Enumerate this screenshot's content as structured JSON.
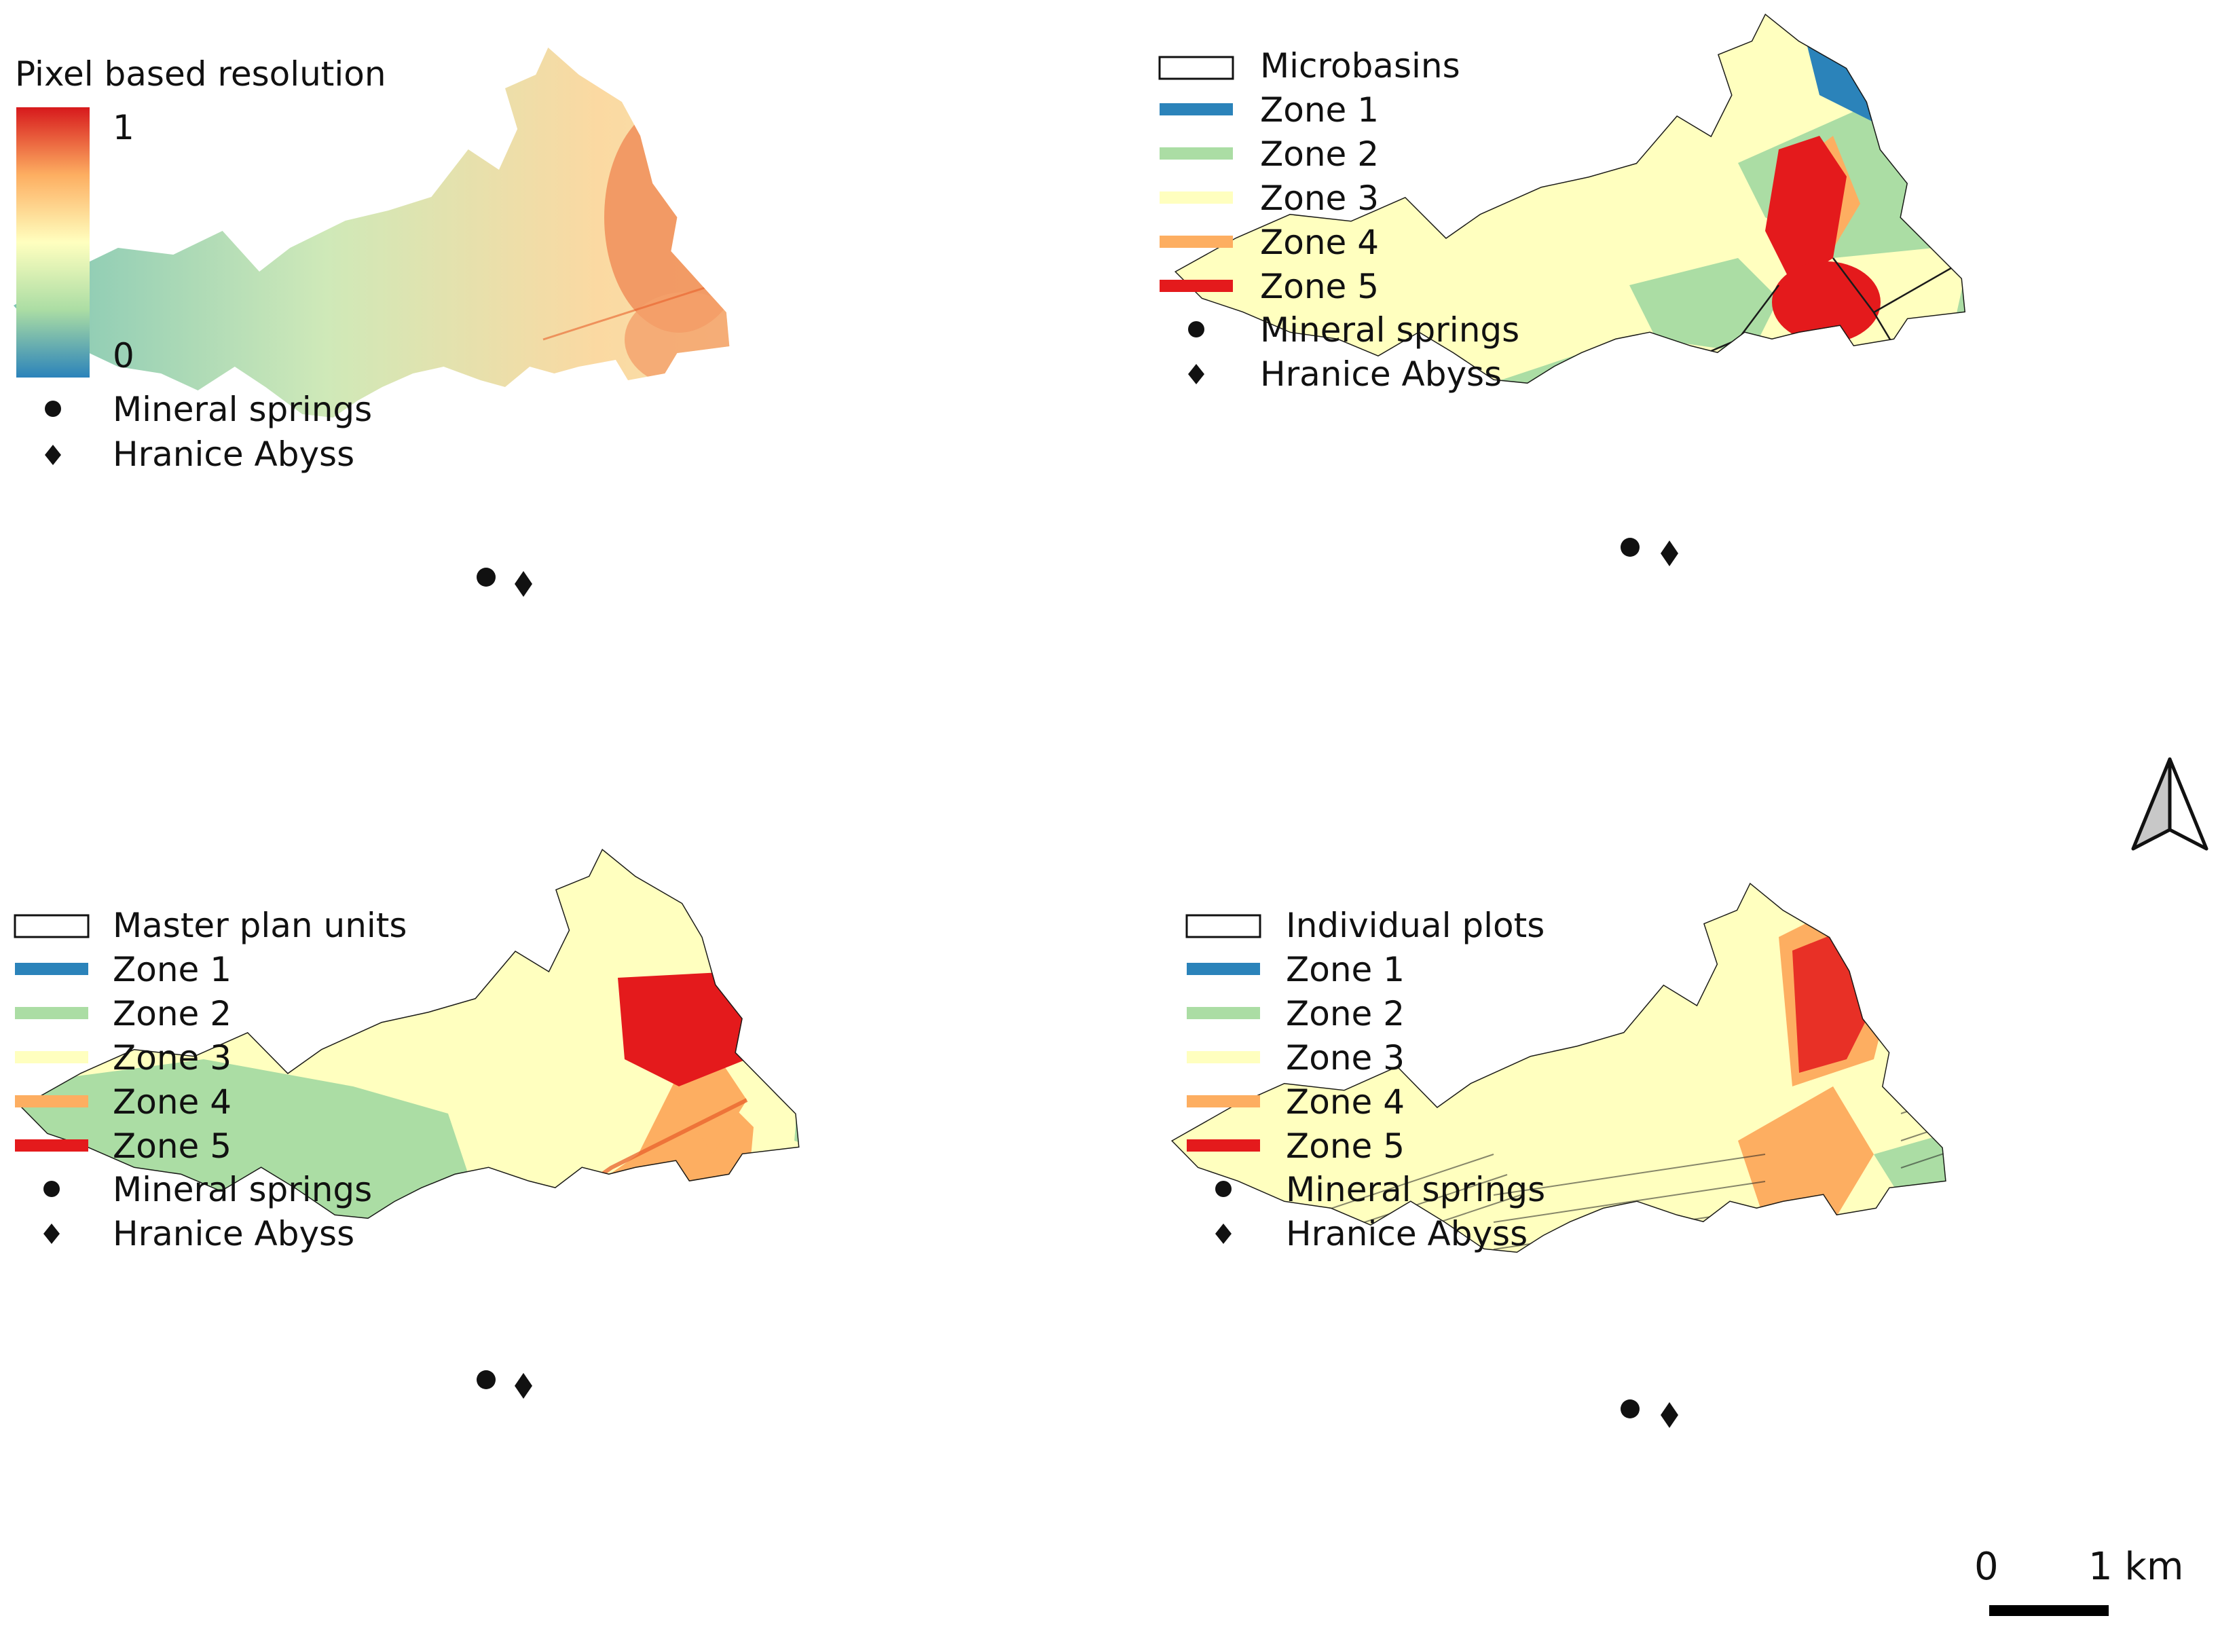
{
  "panels": {
    "raster": {
      "legend": {
        "title": "Pixel based resolution",
        "ramp_max": "1",
        "ramp_min": "0",
        "ramp_colors": [
          "#d7191c",
          "#fdae61",
          "#ffffbf",
          "#abdda4",
          "#2b83ba"
        ],
        "items": [
          {
            "symbol": "circle",
            "label": "Mineral springs"
          },
          {
            "symbol": "diamond",
            "label": "Hranice Abyss"
          }
        ]
      }
    },
    "microbasins": {
      "legend": {
        "items": [
          {
            "symbol": "outline",
            "label": "Microbasins"
          },
          {
            "symbol": "line",
            "color": "#2b83ba",
            "label": "Zone 1"
          },
          {
            "symbol": "line",
            "color": "#abdda4",
            "label": "Zone 2"
          },
          {
            "symbol": "line",
            "color": "#ffffbf",
            "label": "Zone 3"
          },
          {
            "symbol": "line",
            "color": "#fdae61",
            "label": "Zone 4"
          },
          {
            "symbol": "line",
            "color": "#e41a1c",
            "label": "Zone 5"
          },
          {
            "symbol": "circle",
            "label": "Mineral springs"
          },
          {
            "symbol": "diamond",
            "label": "Hranice Abyss"
          }
        ]
      }
    },
    "master_plan": {
      "legend": {
        "items": [
          {
            "symbol": "outline",
            "label": "Master plan  units"
          },
          {
            "symbol": "line",
            "color": "#2b83ba",
            "label": "Zone 1"
          },
          {
            "symbol": "line",
            "color": "#abdda4",
            "label": "Zone 2"
          },
          {
            "symbol": "line",
            "color": "#ffffbf",
            "label": "Zone 3"
          },
          {
            "symbol": "line",
            "color": "#fdae61",
            "label": "Zone 4"
          },
          {
            "symbol": "line",
            "color": "#e41a1c",
            "label": "Zone 5"
          },
          {
            "symbol": "circle",
            "label": "Mineral springs"
          },
          {
            "symbol": "diamond",
            "label": "Hranice Abyss"
          }
        ]
      }
    },
    "plots": {
      "legend": {
        "items": [
          {
            "symbol": "outline",
            "label": "Individual plots"
          },
          {
            "symbol": "line",
            "color": "#2b83ba",
            "label": "Zone 1"
          },
          {
            "symbol": "line",
            "color": "#abdda4",
            "label": "Zone 2"
          },
          {
            "symbol": "line",
            "color": "#ffffbf",
            "label": "Zone 3"
          },
          {
            "symbol": "line",
            "color": "#fdae61",
            "label": "Zone 4"
          },
          {
            "symbol": "line",
            "color": "#e41a1c",
            "label": "Zone 5"
          },
          {
            "symbol": "circle",
            "label": "Mineral springs"
          },
          {
            "symbol": "diamond",
            "label": "Hranice Abyss"
          }
        ]
      }
    }
  },
  "north_arrow": {
    "icon": "north-arrow-icon"
  },
  "scale_bar": {
    "label_start": "0",
    "label_end": "1 km"
  }
}
